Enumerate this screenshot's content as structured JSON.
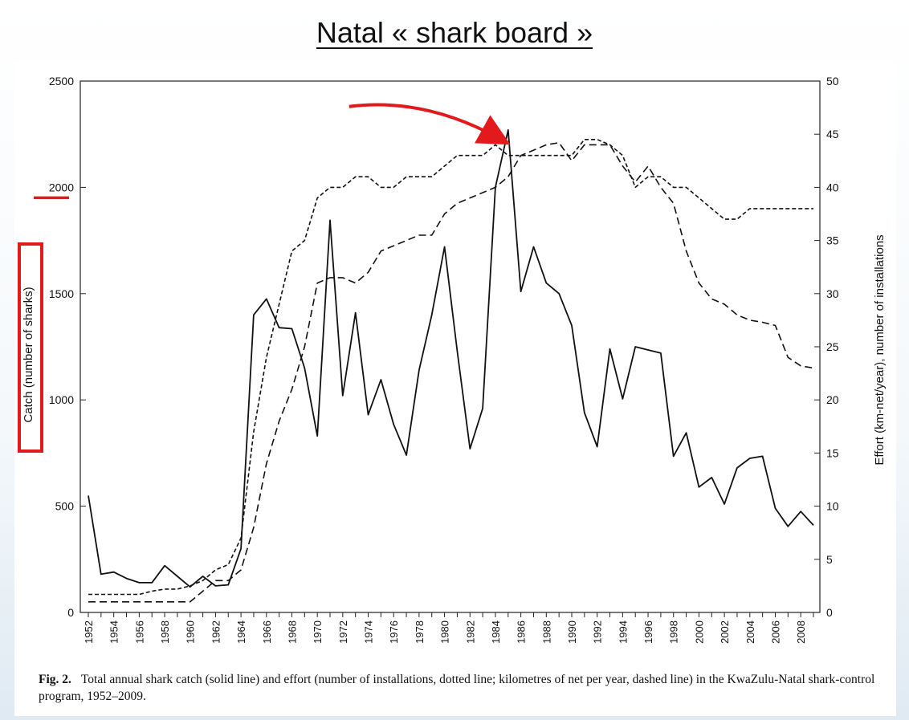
{
  "slide": {
    "title": "Natal « shark board »"
  },
  "caption": {
    "label": "Fig. 2.",
    "text": "Total annual shark catch (solid line) and effort (number of installations, dotted line; kilometres of net per year, dashed line) in the KwaZulu-Natal shark-control program, 1952–2009."
  },
  "colors": {
    "annotation": "#e31a1c",
    "line": "#111111"
  },
  "chart_data": {
    "type": "line",
    "xlabel": "",
    "ylabel": "Catch (number of sharks)",
    "y2label": "Effort (km-net/year), number of installations",
    "xlim": [
      1952,
      2009
    ],
    "ylim": [
      0,
      2500
    ],
    "y2lim": [
      0,
      50
    ],
    "x_ticks": [
      "1952",
      "1954",
      "1956",
      "1958",
      "1960",
      "1962",
      "1964",
      "1966",
      "1968",
      "1970",
      "1972",
      "1974",
      "1976",
      "1978",
      "1980",
      "1982",
      "1984",
      "1986",
      "1988",
      "1990",
      "1992",
      "1994",
      "1996",
      "1998",
      "2000",
      "2002",
      "2004",
      "2006",
      "2008"
    ],
    "y_ticks": [
      "0",
      "500",
      "1000",
      "1500",
      "2000",
      "2500"
    ],
    "y2_ticks": [
      "0",
      "5",
      "10",
      "15",
      "20",
      "25",
      "30",
      "35",
      "40",
      "45",
      "50"
    ],
    "x": [
      1952,
      1953,
      1954,
      1955,
      1956,
      1957,
      1958,
      1959,
      1960,
      1961,
      1962,
      1963,
      1964,
      1965,
      1966,
      1967,
      1968,
      1969,
      1970,
      1971,
      1972,
      1973,
      1974,
      1975,
      1976,
      1977,
      1978,
      1979,
      1980,
      1981,
      1982,
      1983,
      1984,
      1985,
      1986,
      1987,
      1988,
      1989,
      1990,
      1991,
      1992,
      1993,
      1994,
      1995,
      1996,
      1997,
      1998,
      1999,
      2000,
      2001,
      2002,
      2003,
      2004,
      2005,
      2006,
      2007,
      2008,
      2009
    ],
    "series": [
      {
        "style": "solid",
        "axis": "left",
        "values": [
          550,
          180,
          190,
          160,
          140,
          140,
          220,
          170,
          120,
          170,
          125,
          130,
          300,
          1400,
          1475,
          1340,
          1335,
          1150,
          830,
          1845,
          1020,
          1410,
          930,
          1095,
          885,
          740,
          1140,
          1400,
          1720,
          1230,
          770,
          960,
          2000,
          2270,
          1510,
          1720,
          1550,
          1500,
          1350,
          940,
          780,
          1240,
          1005,
          1250,
          1235,
          1220,
          735,
          845,
          590,
          635,
          510,
          680,
          725,
          735,
          490,
          405,
          475,
          410
        ]
      },
      {
        "style": "dashed",
        "axis": "right",
        "values": [
          1,
          1,
          1,
          1,
          1,
          1,
          1,
          1,
          1,
          2,
          3,
          3,
          4,
          8,
          14,
          18,
          21,
          25,
          31,
          31.5,
          31.5,
          31,
          32,
          34,
          34.5,
          35,
          35.5,
          35.5,
          37.5,
          38.5,
          39,
          39.5,
          40,
          41,
          43,
          43.5,
          44,
          44.2,
          42.5,
          44,
          44,
          44,
          42,
          40.5,
          42,
          40,
          38.5,
          34,
          31,
          29.5,
          29,
          28,
          27.5,
          27.3,
          27,
          24,
          23.2,
          23
        ]
      },
      {
        "style": "dotted",
        "axis": "right",
        "values": [
          1.7,
          1.7,
          1.7,
          1.7,
          1.7,
          2,
          2.2,
          2.2,
          2.5,
          3,
          4,
          4.5,
          7,
          17,
          24,
          29,
          34,
          35,
          39,
          40,
          40,
          41,
          41,
          40,
          40,
          41,
          41,
          41,
          42,
          43,
          43,
          43,
          44,
          43,
          43,
          43,
          43,
          43,
          43,
          44.5,
          44.5,
          44,
          43,
          40,
          41,
          41,
          40,
          40,
          39,
          38,
          37,
          37,
          38,
          38,
          38,
          38,
          38,
          38
        ]
      }
    ],
    "annotations": [
      {
        "type": "arrow",
        "from_year": 1972.5,
        "from_value": 2380,
        "to_year": 1984.3,
        "to_value": 2230
      }
    ],
    "grid": false,
    "legend": "none"
  }
}
